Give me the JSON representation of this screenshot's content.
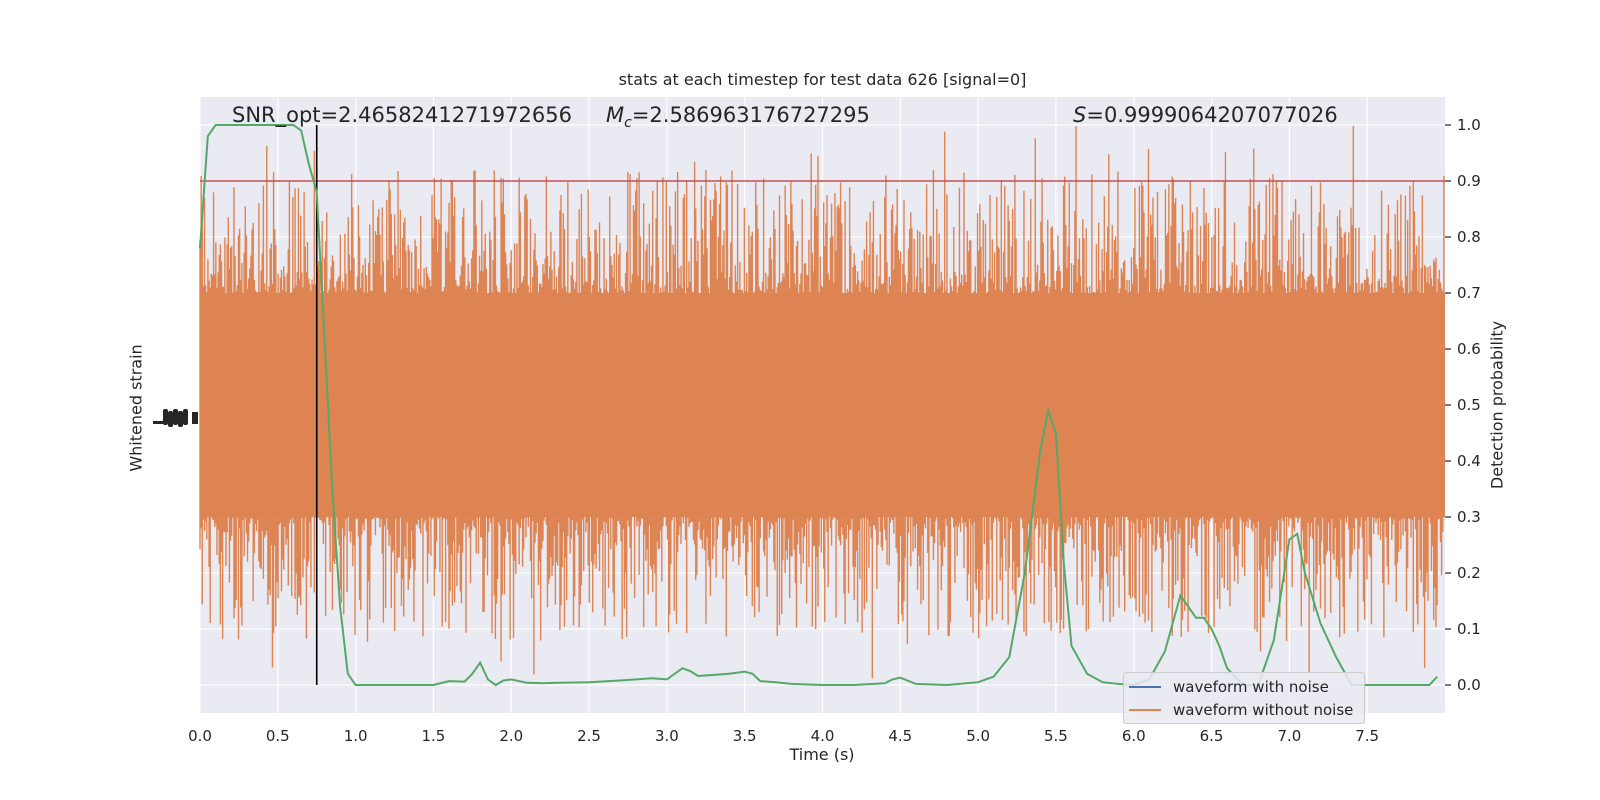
{
  "chart_data": {
    "type": "line",
    "title": "stats at each timestep for test data 626 [signal=0]",
    "annotations": {
      "snr": "SNR_opt=2.4658241271972656",
      "mc_symbol": "M",
      "mc_sub": "c",
      "mc_value": "=2.586963176727295",
      "s_symbol": "S",
      "s_value": "=0.9999064207077026"
    },
    "xlabel": "Time (s)",
    "ylabel_left": "Whitened strain",
    "ylabel_right": "Detection probability",
    "xlim": [
      0.0,
      8.0
    ],
    "x_ticks": [
      "0.0",
      "0.5",
      "1.0",
      "1.5",
      "2.0",
      "2.5",
      "3.0",
      "3.5",
      "4.0",
      "4.5",
      "5.0",
      "5.5",
      "6.0",
      "6.5",
      "7.0",
      "7.5"
    ],
    "right_ylim": [
      -0.05,
      1.05
    ],
    "right_ticks": [
      "0.0",
      "0.1",
      "0.2",
      "0.3",
      "0.4",
      "0.5",
      "0.6",
      "0.7",
      "0.8",
      "0.9",
      "1.0"
    ],
    "threshold": 0.9,
    "marker_time": 0.75,
    "grid": true,
    "legend_position": "bottom-right",
    "series": [
      {
        "name": "waveform with noise",
        "color": "#4c72b0"
      },
      {
        "name": "waveform without noise",
        "color": "#dd8452",
        "band_envelope": {
          "core_low": 0.3,
          "core_high": 0.7,
          "peak_high": 1.0,
          "peak_low": 0.0
        }
      },
      {
        "color": "#55a868",
        "x": [
          0.0,
          0.05,
          0.1,
          0.15,
          0.2,
          0.3,
          0.4,
          0.5,
          0.6,
          0.65,
          0.7,
          0.75,
          0.8,
          0.85,
          0.9,
          0.95,
          1.0,
          1.2,
          1.5,
          1.6,
          1.7,
          1.75,
          1.8,
          1.85,
          1.9,
          1.95,
          2.0,
          2.1,
          2.2,
          2.3,
          2.5,
          2.7,
          2.9,
          3.0,
          3.1,
          3.15,
          3.2,
          3.3,
          3.4,
          3.5,
          3.55,
          3.6,
          3.7,
          3.8,
          4.0,
          4.2,
          4.4,
          4.45,
          4.5,
          4.6,
          4.8,
          5.0,
          5.1,
          5.2,
          5.3,
          5.4,
          5.45,
          5.5,
          5.55,
          5.6,
          5.7,
          5.8,
          5.9,
          6.0,
          6.1,
          6.2,
          6.3,
          6.35,
          6.4,
          6.45,
          6.5,
          6.55,
          6.6,
          6.7,
          6.8,
          6.9,
          7.0,
          7.05,
          7.1,
          7.2,
          7.3,
          7.4,
          7.5,
          7.7,
          7.9,
          7.95
        ],
        "y": [
          0.78,
          0.98,
          1.0,
          1.0,
          1.0,
          1.0,
          1.0,
          1.0,
          1.0,
          0.99,
          0.93,
          0.88,
          0.62,
          0.35,
          0.14,
          0.02,
          0.0,
          0.0,
          0.0,
          0.007,
          0.006,
          0.02,
          0.04,
          0.01,
          0.0,
          0.008,
          0.01,
          0.004,
          0.003,
          0.004,
          0.005,
          0.008,
          0.012,
          0.01,
          0.03,
          0.025,
          0.016,
          0.018,
          0.02,
          0.024,
          0.02,
          0.007,
          0.005,
          0.002,
          0.0,
          0.0,
          0.003,
          0.01,
          0.013,
          0.002,
          0.0,
          0.005,
          0.015,
          0.05,
          0.2,
          0.42,
          0.49,
          0.45,
          0.22,
          0.07,
          0.02,
          0.005,
          0.002,
          0.0,
          0.01,
          0.06,
          0.16,
          0.14,
          0.12,
          0.12,
          0.1,
          0.07,
          0.03,
          0.0,
          0.0,
          0.08,
          0.26,
          0.27,
          0.2,
          0.11,
          0.05,
          0.0,
          0.0,
          0.0,
          0.0,
          0.015
        ]
      }
    ]
  }
}
